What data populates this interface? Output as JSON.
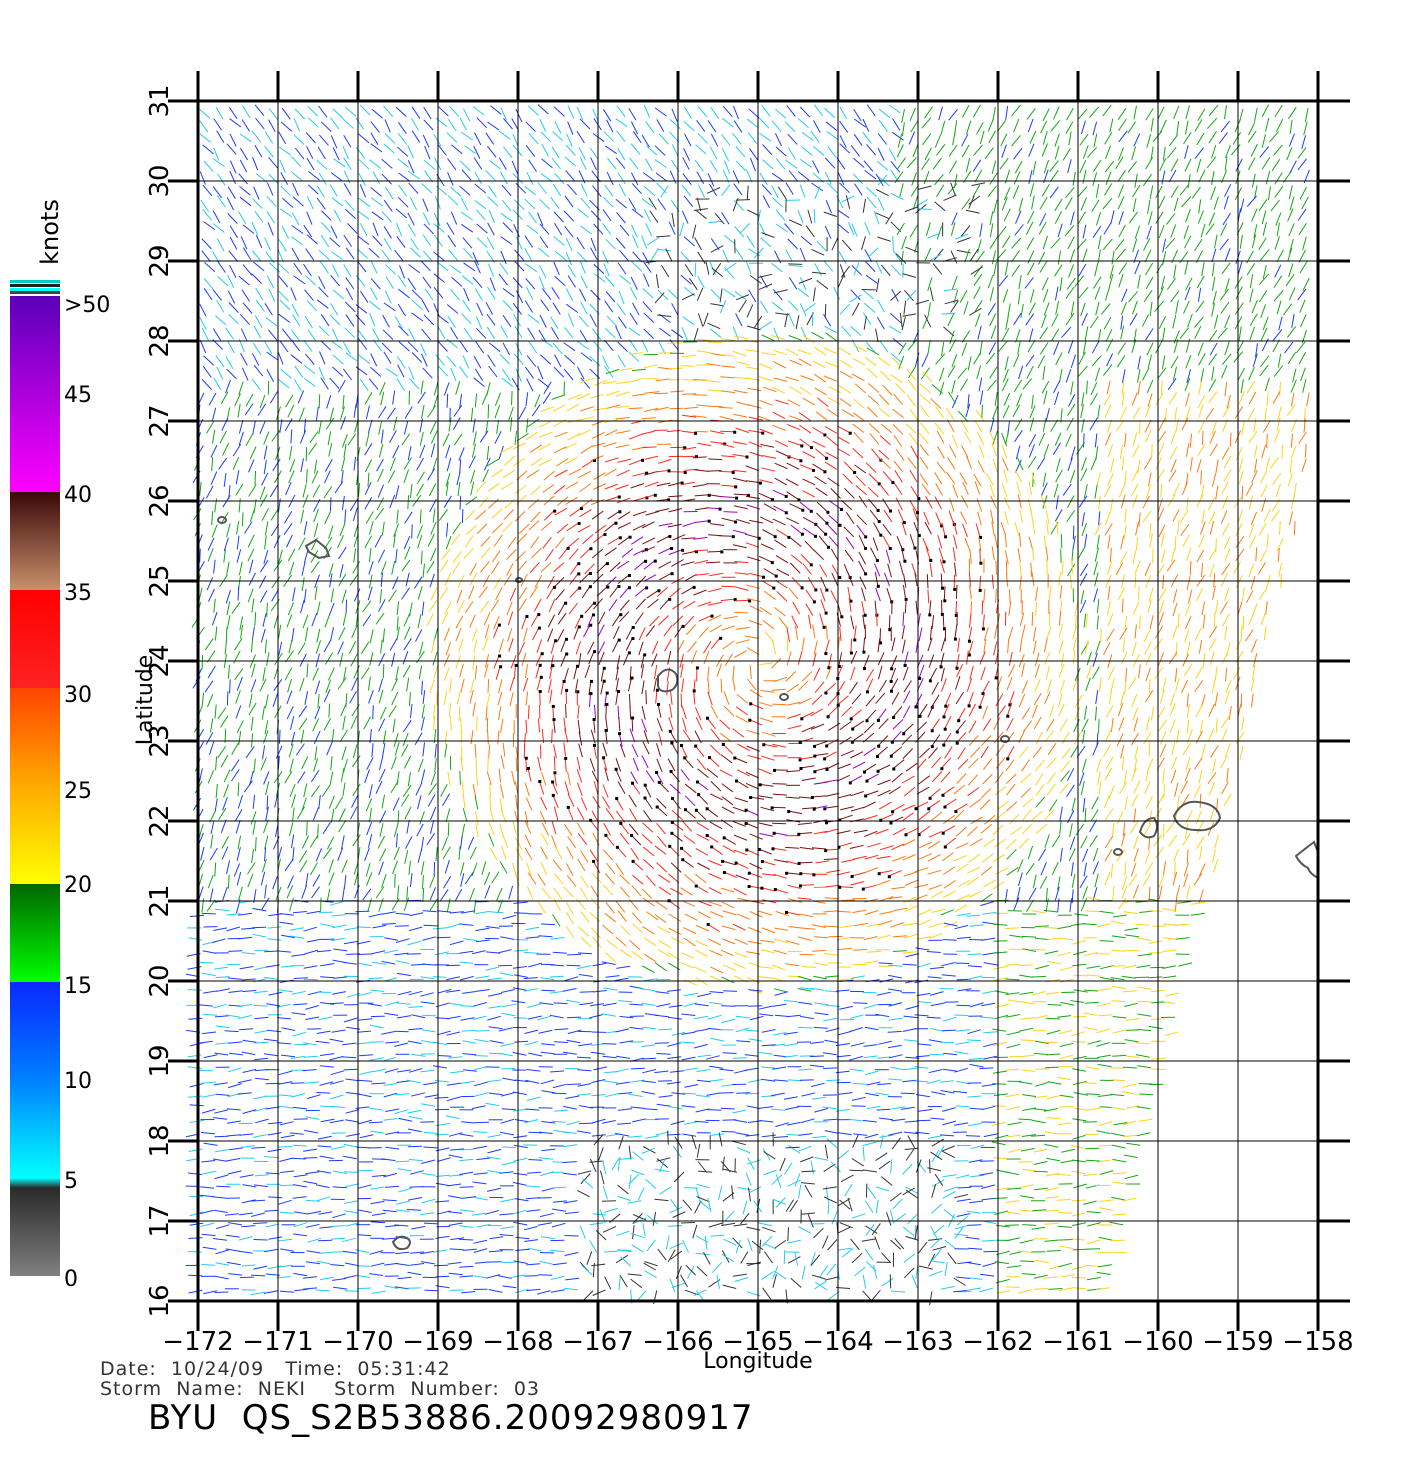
{
  "map": {
    "x_label": "Longitude",
    "y_label": "Latitude",
    "lon_ticks": [
      "−172",
      "−171",
      "−170",
      "−169",
      "−168",
      "−167",
      "−166",
      "−165",
      "−164",
      "−163",
      "−162",
      "−161",
      "−160",
      "−159",
      "−158"
    ],
    "lat_ticks": [
      "16",
      "17",
      "18",
      "19",
      "20",
      "21",
      "22",
      "23",
      "24",
      "25",
      "26",
      "27",
      "28",
      "29",
      "30",
      "31"
    ],
    "lon_range": [
      -172,
      -158
    ],
    "lat_range": [
      16,
      31
    ],
    "grid": true
  },
  "colorbar": {
    "unit_label": "knots",
    "labels": [
      "0",
      "5",
      "10",
      "15",
      "20",
      "25",
      "30",
      "35",
      "40",
      "45",
      ">50"
    ],
    "colors": [
      "#3a3a3a",
      "#00e5ff",
      "#0066ff",
      "#0b2cff",
      "#00ee00",
      "#007a00",
      "#ffee00",
      "#ff9a00",
      "#ff4a00",
      "#ff1010",
      "#c0805a",
      "#401010",
      "#ff00ff",
      "#9900cc",
      "#6a00c0"
    ]
  },
  "storm_center": {
    "lon": -165.0,
    "lat": 24.0
  },
  "info": {
    "line1": "Date:  10/24/09   Time:  05:31:42",
    "line2": "Storm  Name:  NEKI    Storm  Number:  03",
    "title": "BYU  QS_S2B53886.20092980917"
  }
}
